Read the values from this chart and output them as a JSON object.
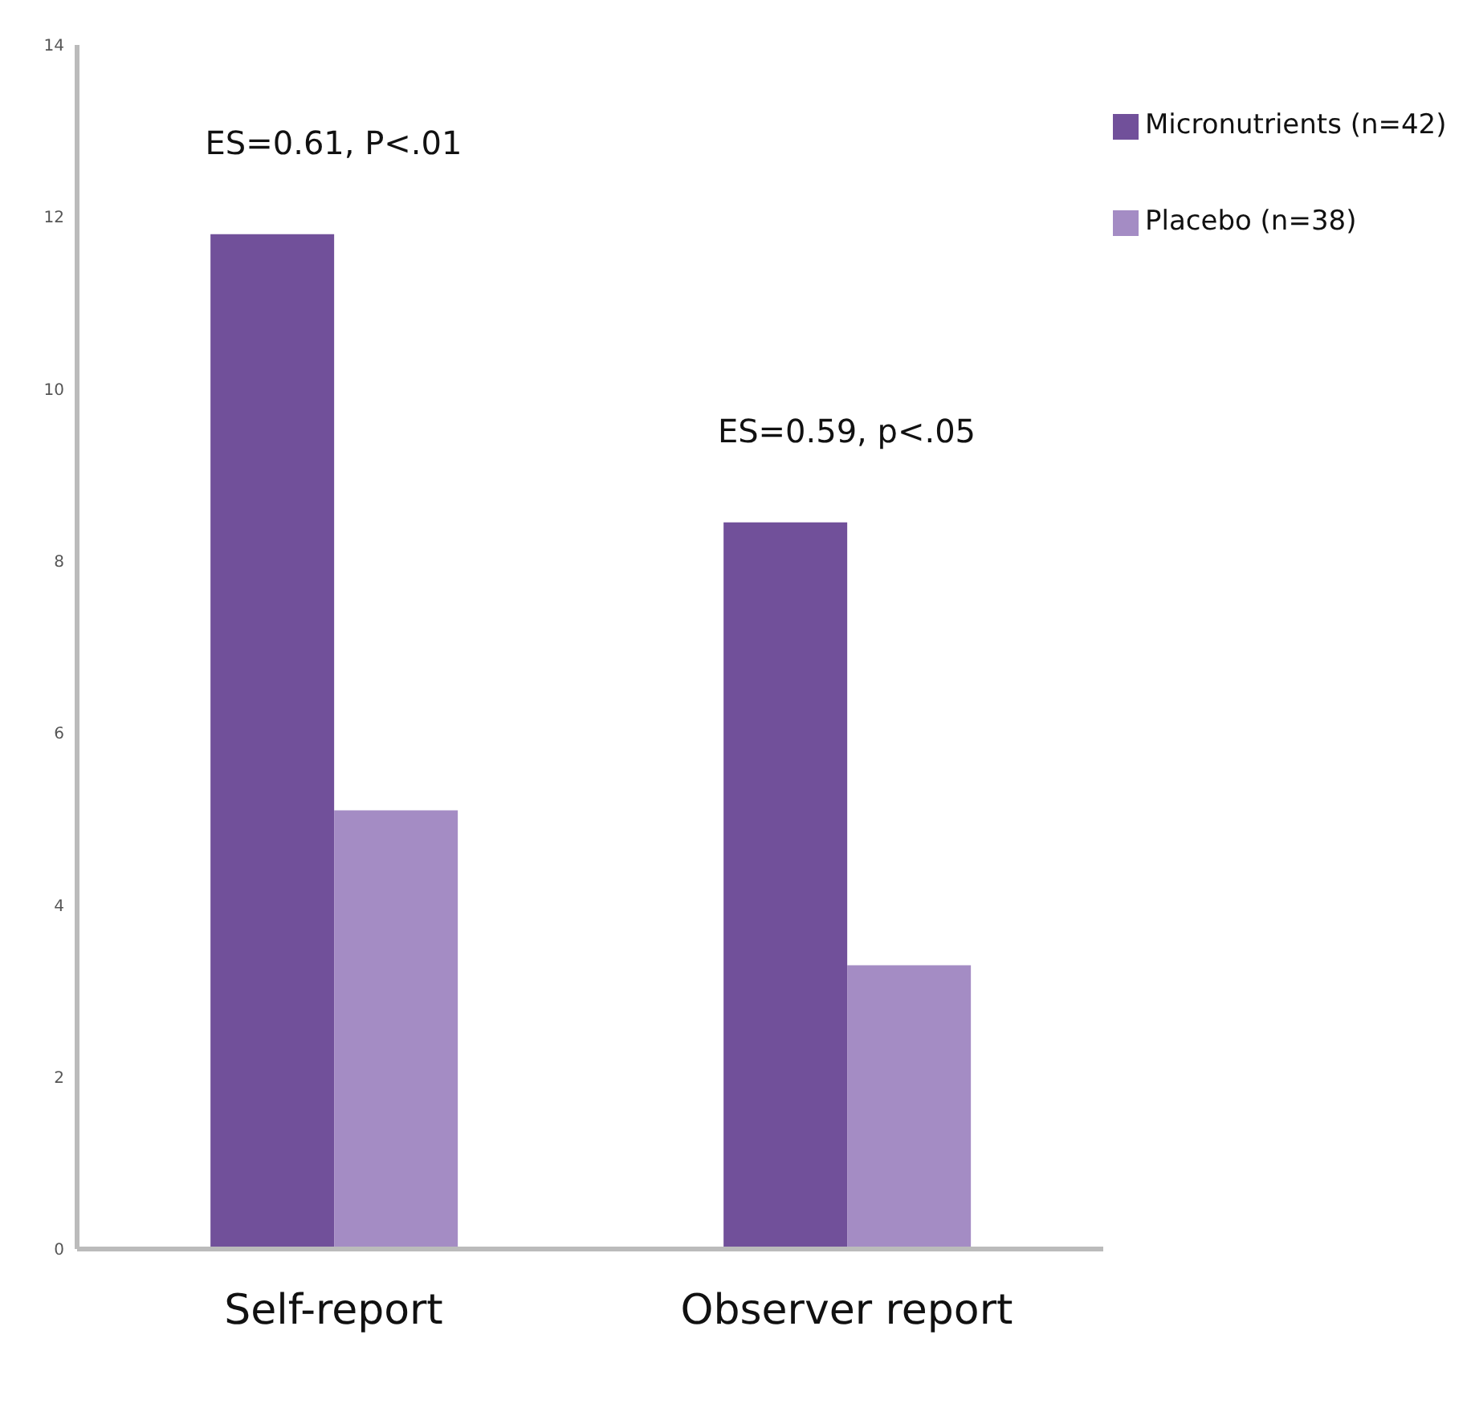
{
  "chart_data": {
    "type": "bar",
    "categories": [
      "Self-report",
      "Observer report"
    ],
    "series": [
      {
        "name": "Micronutrients (n=42)",
        "color": "#71509a",
        "values": [
          11.8,
          8.45
        ]
      },
      {
        "name": "Placebo (n=38)",
        "color": "#a48cc4",
        "values": [
          5.1,
          3.3
        ]
      }
    ],
    "ylim": [
      0,
      14
    ],
    "yticks": [
      0,
      2,
      4,
      6,
      8,
      10,
      12,
      14
    ],
    "grid": false,
    "legend": "top right",
    "annotations": [
      "ES=0.61, P<.01",
      "ES=0.59, p<.05"
    ]
  }
}
